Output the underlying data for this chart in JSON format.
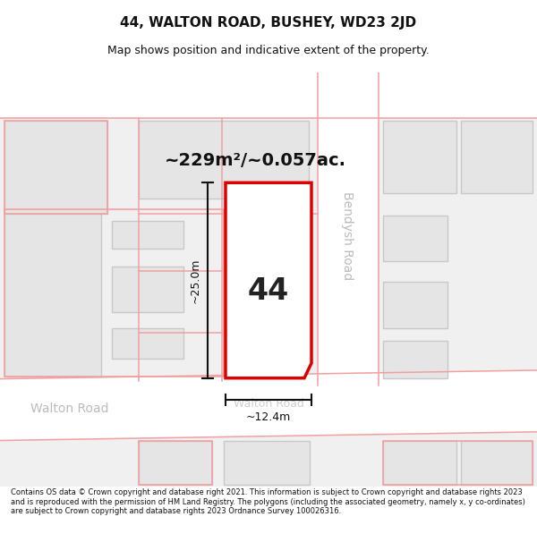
{
  "title": "44, WALTON ROAD, BUSHEY, WD23 2JD",
  "subtitle": "Map shows position and indicative extent of the property.",
  "footer": "Contains OS data © Crown copyright and database right 2021. This information is subject to Crown copyright and database rights 2023 and is reproduced with the permission of HM Land Registry. The polygons (including the associated geometry, namely x, y co-ordinates) are subject to Crown copyright and database rights 2023 Ordnance Survey 100026316.",
  "area_label": "~229m²/~0.057ac.",
  "width_label": "~12.4m",
  "height_label": "~25.0m",
  "number_label": "44",
  "road_label_bendysh": "Bendysh Road",
  "road_label_walton": "Walton Road",
  "bg_color": "#ffffff",
  "map_bg": "#f0f0f0",
  "building_fill": "#e5e5e5",
  "building_edge": "#c8c8c8",
  "road_line_color": "#f0a0a0",
  "property_color": "#dd0000",
  "property_fill": "#ffffff",
  "dim_line_color": "#111111",
  "text_color": "#333333"
}
